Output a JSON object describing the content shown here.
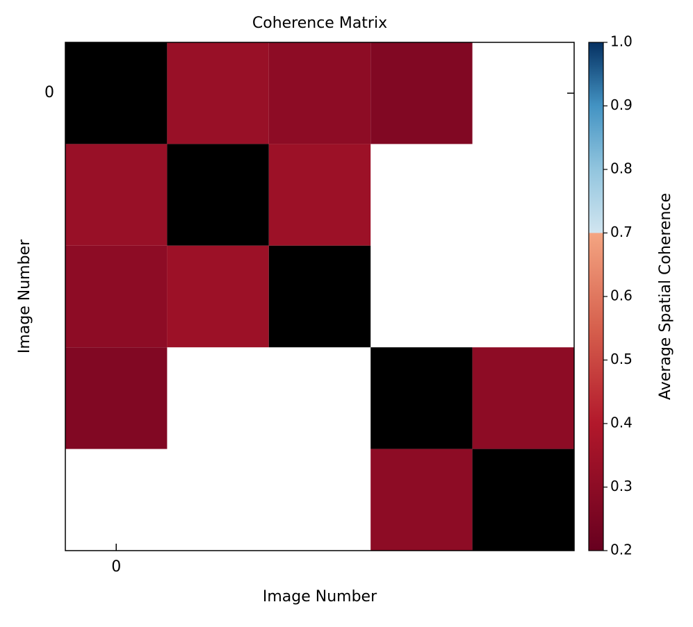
{
  "chart_data": {
    "type": "heatmap",
    "title": "Coherence Matrix",
    "x_label": "Image Number",
    "y_label": "Image Number",
    "colorbar_label": "Average Spatial Coherence",
    "matrix": [
      [
        null,
        0.33,
        0.3,
        0.27,
        null
      ],
      [
        0.33,
        null,
        0.34,
        null,
        null
      ],
      [
        0.3,
        0.34,
        null,
        null,
        null
      ],
      [
        0.27,
        null,
        null,
        null,
        0.3
      ],
      [
        null,
        null,
        null,
        0.3,
        null
      ]
    ],
    "diagonal_color": "#000000",
    "xlim": [
      -0.5,
      4.5
    ],
    "ylim": [
      4.5,
      -0.5
    ],
    "xticks": [
      0
    ],
    "yticks": [
      0
    ],
    "zlim": [
      0.2,
      1.0
    ],
    "zticks": [
      0.2,
      0.3,
      0.4,
      0.5,
      0.6,
      0.7,
      0.8,
      0.9,
      {
        "value": 1.0,
        "label": "1.0"
      }
    ],
    "colormap": [
      {
        "value": 0.2,
        "color": "#67001f"
      },
      {
        "value": 0.4,
        "color": "#b2182b"
      },
      {
        "value": 0.55,
        "color": "#d6604d"
      },
      {
        "value": 0.7,
        "color": "#f4a582"
      },
      {
        "value": 0.7,
        "color": "#d1e5f0"
      },
      {
        "value": 0.8,
        "color": "#92c5de"
      },
      {
        "value": 0.9,
        "color": "#4393c3"
      },
      {
        "value": 1.0,
        "color": "#053061"
      }
    ]
  }
}
